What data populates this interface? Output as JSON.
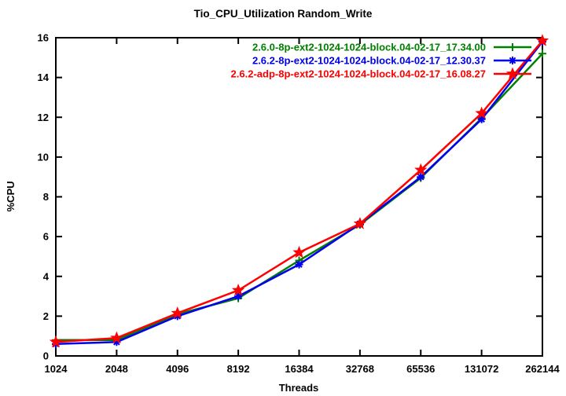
{
  "title": "Tio_CPU_Utilization Random_Write",
  "chart_data": {
    "type": "line",
    "title": "Tio_CPU_Utilization Random_Write",
    "xlabel": "Threads",
    "ylabel": "%CPU",
    "x_scale": "log2-categorical",
    "categories": [
      "1024",
      "2048",
      "4096",
      "8192",
      "16384",
      "32768",
      "65536",
      "131072",
      "262144"
    ],
    "x_numeric": [
      1024,
      2048,
      4096,
      8192,
      16384,
      32768,
      65536,
      131072,
      262144
    ],
    "ylim": [
      0,
      16
    ],
    "yticks": [
      0,
      2,
      4,
      6,
      8,
      10,
      12,
      14,
      16
    ],
    "grid": false,
    "legend_position": "top-right-inside",
    "axis_color": "#000000",
    "background_color": "#ffffff",
    "series": [
      {
        "name": "2.6.0-8p-ext2-1024-1024-block.04-02-17_17.34.00",
        "color": "#008000",
        "marker": "plus",
        "values": [
          0.8,
          0.8,
          2.1,
          2.9,
          4.8,
          6.6,
          8.95,
          11.95,
          15.2
        ]
      },
      {
        "name": "2.6.2-8p-ext2-1024-1024-block.04-02-17_12.30.37",
        "color": "#0000ee",
        "marker": "asterisk",
        "values": [
          0.6,
          0.7,
          2.0,
          3.0,
          4.6,
          6.65,
          9.0,
          11.9,
          15.8
        ]
      },
      {
        "name": "2.6.2-adp-8p-ext2-1024-1024-block.04-02-17_16.08.27",
        "color": "#ff0000",
        "marker": "star",
        "values": [
          0.7,
          0.9,
          2.15,
          3.3,
          5.2,
          6.65,
          9.35,
          12.2,
          15.85
        ]
      }
    ]
  }
}
